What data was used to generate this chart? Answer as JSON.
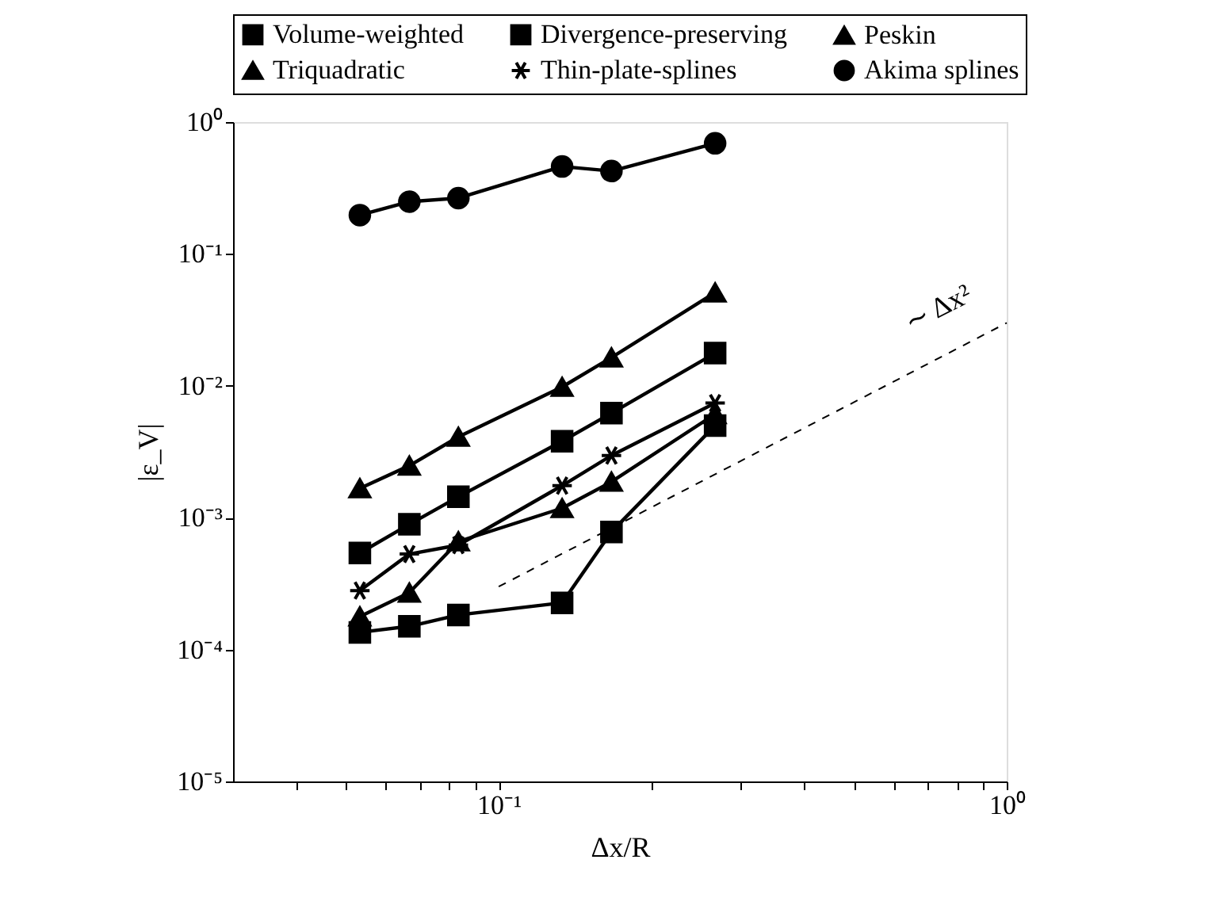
{
  "chart_data": {
    "type": "line",
    "xlabel": "Δx/R",
    "ylabel": "|ε_V|",
    "log": "xy",
    "legend": "top",
    "marker": "circle",
    "x": [
      0.0533,
      0.0667,
      0.0833,
      0.1333,
      0.1667,
      0.2667
    ],
    "xlim": [
      0.03,
      1
    ],
    "ylim": [
      1e-05,
      1
    ],
    "xticks": [
      {
        "value": 0.04,
        "label": null
      },
      {
        "value": 0.05,
        "label": null
      },
      {
        "value": 0.06,
        "label": null
      },
      {
        "value": 0.07,
        "label": null
      },
      {
        "value": 0.08,
        "label": null
      },
      {
        "value": 0.09,
        "label": null
      },
      {
        "value": 0.1,
        "label": "10⁻¹"
      },
      {
        "value": 0.2,
        "label": null
      },
      {
        "value": 0.3,
        "label": null
      },
      {
        "value": 0.4,
        "label": null
      },
      {
        "value": 0.5,
        "label": null
      },
      {
        "value": 0.6,
        "label": null
      },
      {
        "value": 0.7,
        "label": null
      },
      {
        "value": 0.8,
        "label": null
      },
      {
        "value": 0.9,
        "label": null
      },
      {
        "value": 1,
        "label": "10⁰"
      }
    ],
    "yticks": [
      {
        "value": 1e-05,
        "label": "10⁻⁵"
      },
      {
        "value": 0.0001,
        "label": "10⁻⁴"
      },
      {
        "value": 0.001,
        "label": "10⁻³"
      },
      {
        "value": 0.01,
        "label": "10⁻²"
      },
      {
        "value": 0.1,
        "label": "10⁻¹"
      },
      {
        "value": 1,
        "label": "10⁰"
      }
    ],
    "series": [
      {
        "name": "Volume-weighted",
        "color": "#000000",
        "marker": "square",
        "values": [
          0.00054,
          0.00089,
          0.00144,
          0.0038,
          0.0062,
          0.0177
        ]
      },
      {
        "name": "Divergence-preserving",
        "color": "#000000",
        "marker": "square",
        "values": [
          0.000135,
          0.00015,
          0.000183,
          0.000226,
          0.00078,
          0.005
        ]
      },
      {
        "name": "Peskin",
        "color": "#000000",
        "marker": "triangle",
        "values": [
          0.00167,
          0.00248,
          0.0041,
          0.0098,
          0.0164,
          0.051
        ]
      },
      {
        "name": "Triquadratic",
        "color": "#000000",
        "marker": "triangle",
        "values": [
          0.000178,
          0.00027,
          0.00066,
          0.00118,
          0.00187,
          0.0061
        ]
      },
      {
        "name": "Thin-plate-splines",
        "color": "#000000",
        "marker": "cross",
        "values": [
          0.00028,
          0.00053,
          0.00062,
          0.00175,
          0.00296,
          0.0074
        ]
      },
      {
        "name": "Akima splines",
        "color": "#000000",
        "marker": "circle",
        "values": [
          0.197,
          0.249,
          0.265,
          0.46,
          0.425,
          0.69
        ]
      },
      {
        "type": "line",
        "color": "#000000",
        "marker": "none",
        "line_style": "dashed",
        "x": [
          0.1,
          1
        ],
        "values": [
          0.0003,
          0.03
        ]
      }
    ],
    "annotations": [
      "∼ Δx²"
    ]
  }
}
